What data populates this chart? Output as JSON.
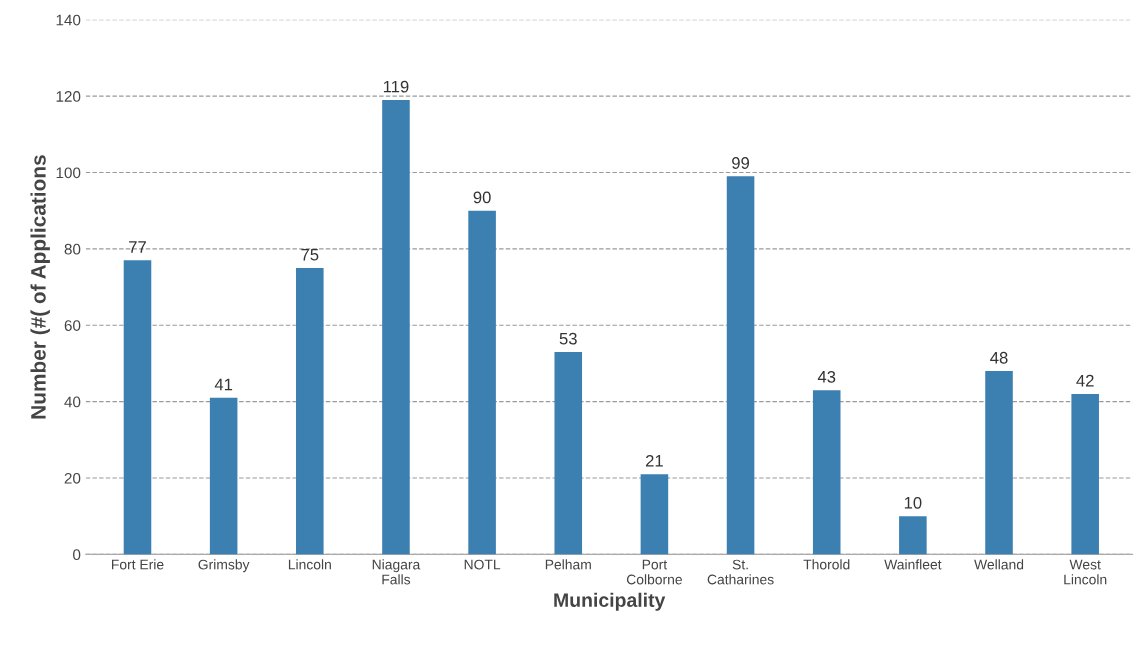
{
  "chart_data": {
    "type": "bar",
    "xlabel": "Municipality",
    "ylabel": "Number (#( of Applications",
    "categories": [
      "Fort Erie",
      "Grimsby",
      "Lincoln",
      "Niagara\nFalls",
      "NOTL",
      "Pelham",
      "Port\nColborne",
      "St.\nCatharines",
      "Thorold",
      "Wainfleet",
      "Welland",
      "West\nLincoln"
    ],
    "values": [
      77,
      41,
      75,
      119,
      90,
      53,
      21,
      99,
      43,
      10,
      48,
      42
    ],
    "color": "#3c7fb1",
    "ylim": [
      0,
      140
    ],
    "yticks": [
      0,
      20,
      40,
      60,
      80,
      100,
      120,
      140
    ],
    "grid": "y",
    "data_labels": true,
    "legend": false
  }
}
